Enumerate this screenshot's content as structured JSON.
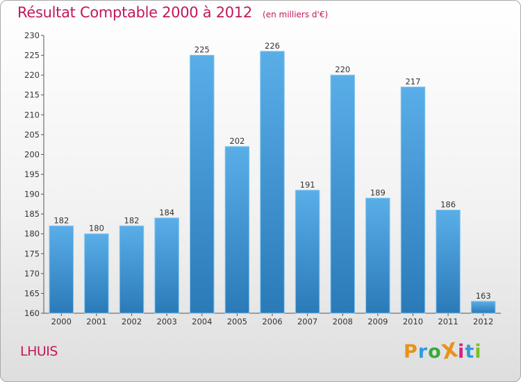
{
  "chart_data": {
    "type": "bar",
    "title": "Résultat Comptable 2000 à 2012",
    "unit_note": "(en milliers d'€)",
    "categories": [
      "2000",
      "2001",
      "2002",
      "2003",
      "2004",
      "2005",
      "2006",
      "2007",
      "2008",
      "2009",
      "2010",
      "2011",
      "2012"
    ],
    "values": [
      182,
      180,
      182,
      184,
      225,
      202,
      226,
      191,
      220,
      189,
      217,
      186,
      163
    ],
    "ylim": [
      160,
      230
    ],
    "yticks": [
      160,
      165,
      170,
      175,
      180,
      185,
      190,
      195,
      200,
      205,
      210,
      215,
      220,
      225,
      230
    ],
    "xlabel": "",
    "ylabel": "",
    "grid": false,
    "legend": "none",
    "bar_color_top": "#5aaee8",
    "bar_color_bottom": "#2a7ab8",
    "bar_edge_color": "#7dc4f2"
  },
  "footer": {
    "commune": "LHUIS",
    "brand": "ProXiti",
    "brand_letters": [
      "P",
      "r",
      "o",
      "X",
      "i",
      "t",
      "i"
    ],
    "brand_colors": [
      "#e8921a",
      "#2e9be0",
      "#3aa93a",
      "#e8921a",
      "#d4247a",
      "#2e9be0",
      "#7bbf2a"
    ]
  },
  "colors": {
    "title": "#c2185b",
    "axis": "#333333"
  }
}
